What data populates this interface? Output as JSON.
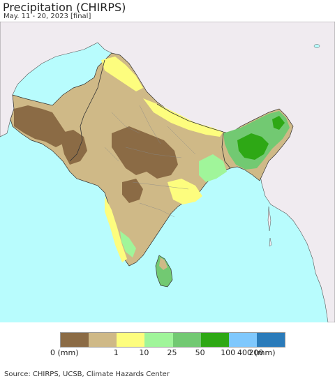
{
  "title": "Precipitation (CHIRPS)",
  "subtitle": "May. 11 - 20, 2023 [final]",
  "legend": {
    "colors": [
      "#8b6b45",
      "#cfb987",
      "#fdfd7e",
      "#a0f59a",
      "#72c972",
      "#2ea815",
      "#7fc8fd",
      "#2a7bba"
    ],
    "labels": [
      "0 (mm)",
      "1",
      "10",
      "25",
      "50",
      "100",
      "200",
      "400 (mm)"
    ]
  },
  "source": "Source: CHIRPS, UCSB, Climate Hazards Center",
  "map_colors": {
    "ocean": "#b8fcfd",
    "land_outside": "#f0ebf0",
    "border": "#333333"
  }
}
